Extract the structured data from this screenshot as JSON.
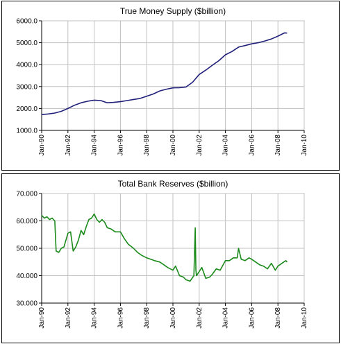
{
  "chart_data": [
    {
      "type": "line",
      "title": "True Money Supply ($billion)",
      "xlabel": "",
      "ylabel": "",
      "x_tick_labels": [
        "Jan-90",
        "Jan-92",
        "Jan-94",
        "Jan-96",
        "Jan-98",
        "Jan-00",
        "Jan-02",
        "Jan-04",
        "Jan-06",
        "Jan-08",
        "Jan-10"
      ],
      "y_tick_labels": [
        "1000.0",
        "2000.0",
        "3000.0",
        "4000.0",
        "5000.0",
        "6000.0"
      ],
      "xlim": [
        1990.0,
        2010.0
      ],
      "ylim": [
        1000,
        6000
      ],
      "grid": true,
      "colors": {
        "line": "#1f1f7a",
        "grid": "#c0c0c0",
        "plot_bg": "#ffffff"
      },
      "series": [
        {
          "x": [
            1990.0,
            1990.5,
            1991.0,
            1991.5,
            1992.0,
            1992.5,
            1993.0,
            1993.5,
            1994.0,
            1994.5,
            1995.0,
            1995.5,
            1996.0,
            1996.5,
            1997.0,
            1997.5,
            1998.0,
            1998.5,
            1999.0,
            1999.5,
            2000.0,
            2000.5,
            2001.0,
            2001.5,
            2002.0,
            2002.5,
            2003.0,
            2003.5,
            2004.0,
            2004.5,
            2005.0,
            2005.5,
            2006.0,
            2006.5,
            2007.0,
            2007.5,
            2008.0,
            2008.5,
            2008.7
          ],
          "y": [
            1720,
            1750,
            1790,
            1870,
            2000,
            2150,
            2260,
            2330,
            2380,
            2360,
            2260,
            2280,
            2310,
            2360,
            2410,
            2460,
            2560,
            2660,
            2800,
            2880,
            2940,
            2950,
            2980,
            3200,
            3550,
            3750,
            3970,
            4180,
            4450,
            4600,
            4800,
            4870,
            4950,
            5000,
            5080,
            5170,
            5300,
            5450,
            5440
          ]
        }
      ]
    },
    {
      "type": "line",
      "title": "Total Bank Reserves ($billion)",
      "xlabel": "",
      "ylabel": "",
      "x_tick_labels": [
        "Jan-90",
        "Jan-92",
        "Jan-94",
        "Jan-96",
        "Jan-98",
        "Jan-00",
        "Jan-02",
        "Jan-04",
        "Jan-06",
        "Jan-08",
        "Jan-10"
      ],
      "y_tick_labels": [
        "30.000",
        "40.000",
        "50.000",
        "60.000",
        "70.000"
      ],
      "xlim": [
        1990.0,
        2010.0
      ],
      "ylim": [
        30,
        70
      ],
      "grid": true,
      "colors": {
        "line": "#1a8a1a",
        "grid": "#c0c0c0",
        "plot_bg": "#ffffff"
      },
      "series": [
        {
          "x": [
            1990.0,
            1990.2,
            1990.4,
            1990.6,
            1990.8,
            1991.0,
            1991.1,
            1991.3,
            1991.5,
            1991.7,
            1992.0,
            1992.2,
            1992.4,
            1992.6,
            1992.8,
            1993.0,
            1993.2,
            1993.4,
            1993.6,
            1993.8,
            1994.0,
            1994.2,
            1994.4,
            1994.6,
            1994.8,
            1995.0,
            1995.3,
            1995.6,
            1996.0,
            1996.3,
            1996.6,
            1997.0,
            1997.3,
            1997.6,
            1998.0,
            1998.3,
            1998.6,
            1999.0,
            1999.3,
            1999.6,
            2000.0,
            2000.2,
            2000.5,
            2000.8,
            2001.0,
            2001.3,
            2001.6,
            2001.7,
            2001.75,
            2001.8,
            2002.0,
            2002.2,
            2002.5,
            2002.8,
            2003.0,
            2003.3,
            2003.6,
            2004.0,
            2004.3,
            2004.6,
            2004.9,
            2005.0,
            2005.2,
            2005.5,
            2005.8,
            2006.0,
            2006.3,
            2006.6,
            2006.9,
            2007.2,
            2007.5,
            2007.8,
            2008.0,
            2008.3,
            2008.6,
            2008.7
          ],
          "y": [
            62.0,
            61.0,
            61.5,
            60.5,
            61.0,
            60.0,
            49.0,
            48.5,
            50.0,
            50.5,
            55.5,
            56.0,
            49.0,
            50.5,
            53.0,
            56.5,
            55.0,
            58.0,
            60.5,
            61.0,
            62.5,
            60.5,
            59.5,
            60.5,
            59.5,
            57.5,
            57.0,
            56.0,
            56.0,
            53.5,
            51.5,
            50.0,
            48.5,
            47.5,
            46.5,
            46.0,
            45.5,
            45.0,
            44.0,
            43.0,
            42.0,
            43.5,
            40.0,
            39.5,
            38.5,
            38.0,
            40.0,
            57.5,
            42.0,
            40.0,
            41.5,
            43.0,
            39.0,
            39.5,
            40.5,
            42.5,
            42.0,
            45.5,
            45.5,
            46.5,
            46.5,
            50.0,
            46.0,
            45.5,
            46.5,
            46.0,
            45.0,
            44.0,
            43.5,
            42.5,
            44.5,
            42.0,
            43.5,
            44.5,
            45.5,
            45.0
          ]
        }
      ]
    }
  ]
}
